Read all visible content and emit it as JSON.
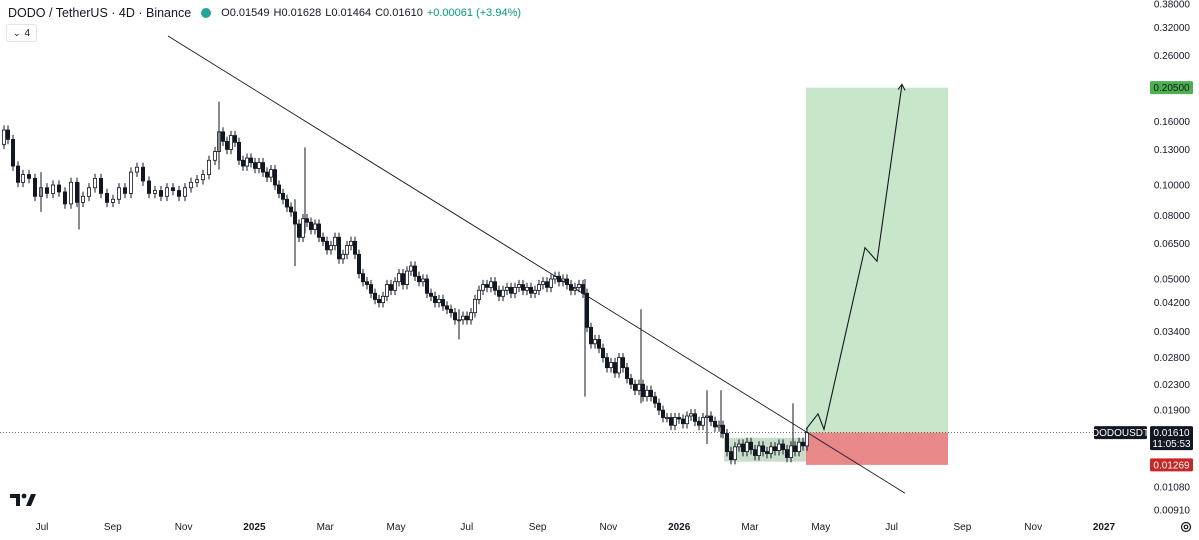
{
  "header": {
    "symbol": "DODO / TetherUS · 4D · Binance",
    "open": "O0.01549",
    "high": "H0.01628",
    "low": "L0.01464",
    "close": "C0.01610",
    "change": "+0.00061 (+3.94%)",
    "indicator_count": "4"
  },
  "colors": {
    "up": "#089981",
    "down": "#131722",
    "candle_outline": "#131722",
    "profit_zone": "#c8e6c9",
    "loss_zone": "#e57373",
    "target_label_bg": "#4caf50",
    "stop_label_bg": "#c62828",
    "price_label_bg": "#131722"
  },
  "chart_data": {
    "type": "candlestick",
    "scale": "log",
    "ylim": [
      0.0091,
      0.38
    ],
    "y_ticks": [
      "0.38000",
      "0.32000",
      "0.26000",
      "0.20500",
      "0.16000",
      "0.13000",
      "0.10000",
      "0.08000",
      "0.06500",
      "0.05000",
      "0.04200",
      "0.03400",
      "0.02800",
      "0.02300",
      "0.01900",
      "0.01610",
      "0.01269",
      "0.01080",
      "0.00910"
    ],
    "y_tick_values": [
      0.38,
      0.32,
      0.26,
      0.205,
      0.16,
      0.13,
      0.1,
      0.08,
      0.065,
      0.05,
      0.042,
      0.034,
      0.028,
      0.023,
      0.019,
      0.0161,
      0.01269,
      0.0108,
      0.0091
    ],
    "x_ticks": [
      {
        "label": "Jul",
        "bold": false
      },
      {
        "label": "Sep",
        "bold": false
      },
      {
        "label": "Nov",
        "bold": false
      },
      {
        "label": "2025",
        "bold": true
      },
      {
        "label": "Mar",
        "bold": false
      },
      {
        "label": "May",
        "bold": false
      },
      {
        "label": "Jul",
        "bold": false
      },
      {
        "label": "Sep",
        "bold": false
      },
      {
        "label": "Nov",
        "bold": false
      },
      {
        "label": "2026",
        "bold": true
      },
      {
        "label": "Mar",
        "bold": false
      },
      {
        "label": "May",
        "bold": false
      },
      {
        "label": "Jul",
        "bold": false
      },
      {
        "label": "Sep",
        "bold": false
      },
      {
        "label": "Nov",
        "bold": false
      },
      {
        "label": "2027",
        "bold": true
      }
    ],
    "price_path": [
      [
        0,
        0.135
      ],
      [
        4,
        0.15
      ],
      [
        8,
        0.14
      ],
      [
        13,
        0.115
      ],
      [
        18,
        0.102
      ],
      [
        23,
        0.108
      ],
      [
        29,
        0.105
      ],
      [
        35,
        0.092
      ],
      [
        41,
        0.098
      ],
      [
        47,
        0.094
      ],
      [
        53,
        0.1
      ],
      [
        59,
        0.095
      ],
      [
        65,
        0.087
      ],
      [
        71,
        0.102
      ],
      [
        77,
        0.088
      ],
      [
        83,
        0.092
      ],
      [
        89,
        0.098
      ],
      [
        95,
        0.105
      ],
      [
        101,
        0.094
      ],
      [
        107,
        0.088
      ],
      [
        113,
        0.09
      ],
      [
        119,
        0.098
      ],
      [
        125,
        0.094
      ],
      [
        131,
        0.11
      ],
      [
        137,
        0.114
      ],
      [
        143,
        0.103
      ],
      [
        149,
        0.094
      ],
      [
        155,
        0.096
      ],
      [
        161,
        0.092
      ],
      [
        167,
        0.098
      ],
      [
        173,
        0.096
      ],
      [
        179,
        0.092
      ],
      [
        185,
        0.098
      ],
      [
        191,
        0.102
      ],
      [
        197,
        0.104
      ],
      [
        203,
        0.108
      ],
      [
        209,
        0.12
      ],
      [
        215,
        0.128
      ],
      [
        219,
        0.148
      ],
      [
        223,
        0.138
      ],
      [
        227,
        0.13
      ],
      [
        231,
        0.144
      ],
      [
        235,
        0.137
      ],
      [
        239,
        0.12
      ],
      [
        243,
        0.115
      ],
      [
        247,
        0.122
      ],
      [
        251,
        0.118
      ],
      [
        255,
        0.113
      ],
      [
        259,
        0.118
      ],
      [
        263,
        0.11
      ],
      [
        267,
        0.106
      ],
      [
        271,
        0.112
      ],
      [
        275,
        0.1
      ],
      [
        279,
        0.094
      ],
      [
        283,
        0.09
      ],
      [
        287,
        0.085
      ],
      [
        291,
        0.082
      ],
      [
        295,
        0.075
      ],
      [
        299,
        0.068
      ],
      [
        303,
        0.078
      ],
      [
        307,
        0.076
      ],
      [
        311,
        0.072
      ],
      [
        315,
        0.075
      ],
      [
        319,
        0.068
      ],
      [
        323,
        0.066
      ],
      [
        327,
        0.062
      ],
      [
        331,
        0.064
      ],
      [
        335,
        0.068
      ],
      [
        339,
        0.058
      ],
      [
        343,
        0.06
      ],
      [
        347,
        0.064
      ],
      [
        351,
        0.066
      ],
      [
        355,
        0.06
      ],
      [
        359,
        0.052
      ],
      [
        363,
        0.049
      ],
      [
        367,
        0.048
      ],
      [
        371,
        0.045
      ],
      [
        375,
        0.043
      ],
      [
        379,
        0.042
      ],
      [
        383,
        0.044
      ],
      [
        387,
        0.048
      ],
      [
        391,
        0.046
      ],
      [
        395,
        0.049
      ],
      [
        399,
        0.052
      ],
      [
        403,
        0.048
      ],
      [
        407,
        0.053
      ],
      [
        411,
        0.055
      ],
      [
        415,
        0.051
      ],
      [
        419,
        0.049
      ],
      [
        423,
        0.05
      ],
      [
        427,
        0.045
      ],
      [
        431,
        0.044
      ],
      [
        435,
        0.042
      ],
      [
        439,
        0.043
      ],
      [
        443,
        0.041
      ],
      [
        447,
        0.04
      ],
      [
        451,
        0.039
      ],
      [
        455,
        0.037
      ],
      [
        459,
        0.037
      ],
      [
        463,
        0.038
      ],
      [
        467,
        0.037
      ],
      [
        471,
        0.039
      ],
      [
        475,
        0.043
      ],
      [
        479,
        0.046
      ],
      [
        483,
        0.048
      ],
      [
        487,
        0.047
      ],
      [
        491,
        0.049
      ],
      [
        495,
        0.046
      ],
      [
        499,
        0.044
      ],
      [
        503,
        0.046
      ],
      [
        507,
        0.047
      ],
      [
        511,
        0.045
      ],
      [
        515,
        0.047
      ],
      [
        519,
        0.048
      ],
      [
        523,
        0.046
      ],
      [
        527,
        0.047
      ],
      [
        531,
        0.045
      ],
      [
        535,
        0.046
      ],
      [
        539,
        0.048
      ],
      [
        543,
        0.049
      ],
      [
        547,
        0.047
      ],
      [
        551,
        0.05
      ],
      [
        555,
        0.051
      ],
      [
        559,
        0.049
      ],
      [
        563,
        0.05
      ],
      [
        567,
        0.048
      ],
      [
        571,
        0.046
      ],
      [
        575,
        0.047
      ],
      [
        579,
        0.048
      ],
      [
        583,
        0.045
      ],
      [
        587,
        0.035
      ],
      [
        591,
        0.031
      ],
      [
        595,
        0.032
      ],
      [
        599,
        0.03
      ],
      [
        603,
        0.028
      ],
      [
        607,
        0.026
      ],
      [
        611,
        0.027
      ],
      [
        615,
        0.025
      ],
      [
        619,
        0.028
      ],
      [
        623,
        0.026
      ],
      [
        627,
        0.024
      ],
      [
        631,
        0.023
      ],
      [
        635,
        0.022
      ],
      [
        639,
        0.023
      ],
      [
        643,
        0.021
      ],
      [
        647,
        0.022
      ],
      [
        651,
        0.021
      ],
      [
        655,
        0.02
      ],
      [
        659,
        0.019
      ],
      [
        663,
        0.018
      ],
      [
        667,
        0.018
      ],
      [
        671,
        0.017
      ],
      [
        675,
        0.018
      ],
      [
        679,
        0.0178
      ],
      [
        683,
        0.0172
      ],
      [
        687,
        0.0182
      ],
      [
        691,
        0.0185
      ],
      [
        695,
        0.0175
      ],
      [
        699,
        0.017
      ],
      [
        703,
        0.018
      ],
      [
        707,
        0.0182
      ],
      [
        711,
        0.0175
      ],
      [
        715,
        0.0168
      ],
      [
        719,
        0.017
      ],
      [
        723,
        0.016
      ],
      [
        727,
        0.014
      ],
      [
        731,
        0.0132
      ],
      [
        735,
        0.0145
      ],
      [
        739,
        0.0148
      ],
      [
        743,
        0.014
      ],
      [
        747,
        0.015
      ],
      [
        751,
        0.0142
      ],
      [
        755,
        0.0136
      ],
      [
        759,
        0.0146
      ],
      [
        763,
        0.014
      ],
      [
        767,
        0.0138
      ],
      [
        771,
        0.0145
      ],
      [
        775,
        0.0141
      ],
      [
        779,
        0.0148
      ],
      [
        783,
        0.0142
      ],
      [
        787,
        0.0134
      ],
      [
        791,
        0.0146
      ],
      [
        795,
        0.014
      ],
      [
        799,
        0.015
      ],
      [
        803,
        0.0146
      ],
      [
        807,
        0.0161
      ]
    ],
    "wick_spikes": [
      {
        "x": 219,
        "high": 0.185,
        "low": 0.112
      },
      {
        "x": 41,
        "high": 0.11,
        "low": 0.082
      },
      {
        "x": 79,
        "high": 0.102,
        "low": 0.072
      },
      {
        "x": 295,
        "high": 0.09,
        "low": 0.055
      },
      {
        "x": 305,
        "high": 0.132,
        "low": 0.07
      },
      {
        "x": 585,
        "high": 0.05,
        "low": 0.021
      },
      {
        "x": 641,
        "high": 0.04,
        "low": 0.02
      },
      {
        "x": 459,
        "high": 0.04,
        "low": 0.032
      },
      {
        "x": 707,
        "high": 0.022,
        "low": 0.0148
      },
      {
        "x": 721,
        "high": 0.022,
        "low": 0.0155
      },
      {
        "x": 793,
        "high": 0.02,
        "low": 0.0142
      }
    ],
    "trendline": {
      "from": [
        168,
        0.3
      ],
      "to": [
        905,
        0.0103
      ]
    },
    "position": {
      "entry": 0.0161,
      "target": 0.205,
      "stop": 0.01269,
      "x_start": 806,
      "x_end": 948
    },
    "consolidation_box": {
      "x_start": 724,
      "x_end": 806,
      "top": 0.0155,
      "bottom": 0.013
    },
    "projection_path": [
      [
        806,
        0.0165
      ],
      [
        818,
        0.0185
      ],
      [
        824,
        0.0165
      ],
      [
        865,
        0.063
      ],
      [
        877,
        0.057
      ],
      [
        902,
        0.21
      ]
    ],
    "price_labels": [
      {
        "text": "0.20500",
        "kind": "target"
      },
      {
        "text": "0.01610",
        "kind": "last",
        "sub": "11:05:53"
      },
      {
        "text": "0.01269",
        "kind": "stop"
      }
    ],
    "symbol_tag": "DODOUSDT"
  }
}
